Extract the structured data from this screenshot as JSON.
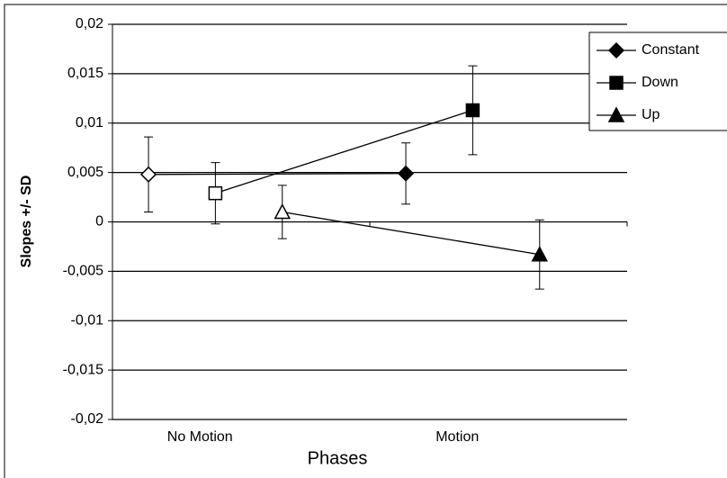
{
  "chart_data": {
    "type": "line",
    "xlabel": "Phases",
    "ylabel": "Slopes +/- SD",
    "categories": [
      "No Motion",
      "Motion"
    ],
    "marker_fills": [
      "#ffffff",
      "#000000"
    ],
    "series": [
      {
        "name": "Constant",
        "color": "#000000",
        "marker": "diamond",
        "values": [
          0.0048,
          0.0049
        ],
        "errors": [
          0.0038,
          0.0031
        ]
      },
      {
        "name": "Down",
        "color": "#000000",
        "marker": "square",
        "values": [
          0.0029,
          0.0113
        ],
        "errors": [
          0.0031,
          0.0045
        ]
      },
      {
        "name": "Up",
        "color": "#000000",
        "marker": "triangle",
        "values": [
          0.001,
          -0.0033
        ],
        "errors": [
          0.0027,
          0.0035
        ]
      }
    ],
    "ylim": [
      -0.02,
      0.02
    ],
    "yticks": [
      {
        "value": -0.02,
        "label": "-0,02"
      },
      {
        "value": -0.015,
        "label": "-0,015"
      },
      {
        "value": -0.01,
        "label": "-0,01"
      },
      {
        "value": -0.005,
        "label": "-0,005"
      },
      0,
      {
        "value": 0.005,
        "label": "0,005"
      },
      {
        "value": 0.01,
        "label": "0,01"
      },
      {
        "value": 0.015,
        "label": "0,015"
      },
      {
        "value": 0.02,
        "label": "0,02"
      }
    ],
    "grid": true,
    "legend": "right"
  }
}
